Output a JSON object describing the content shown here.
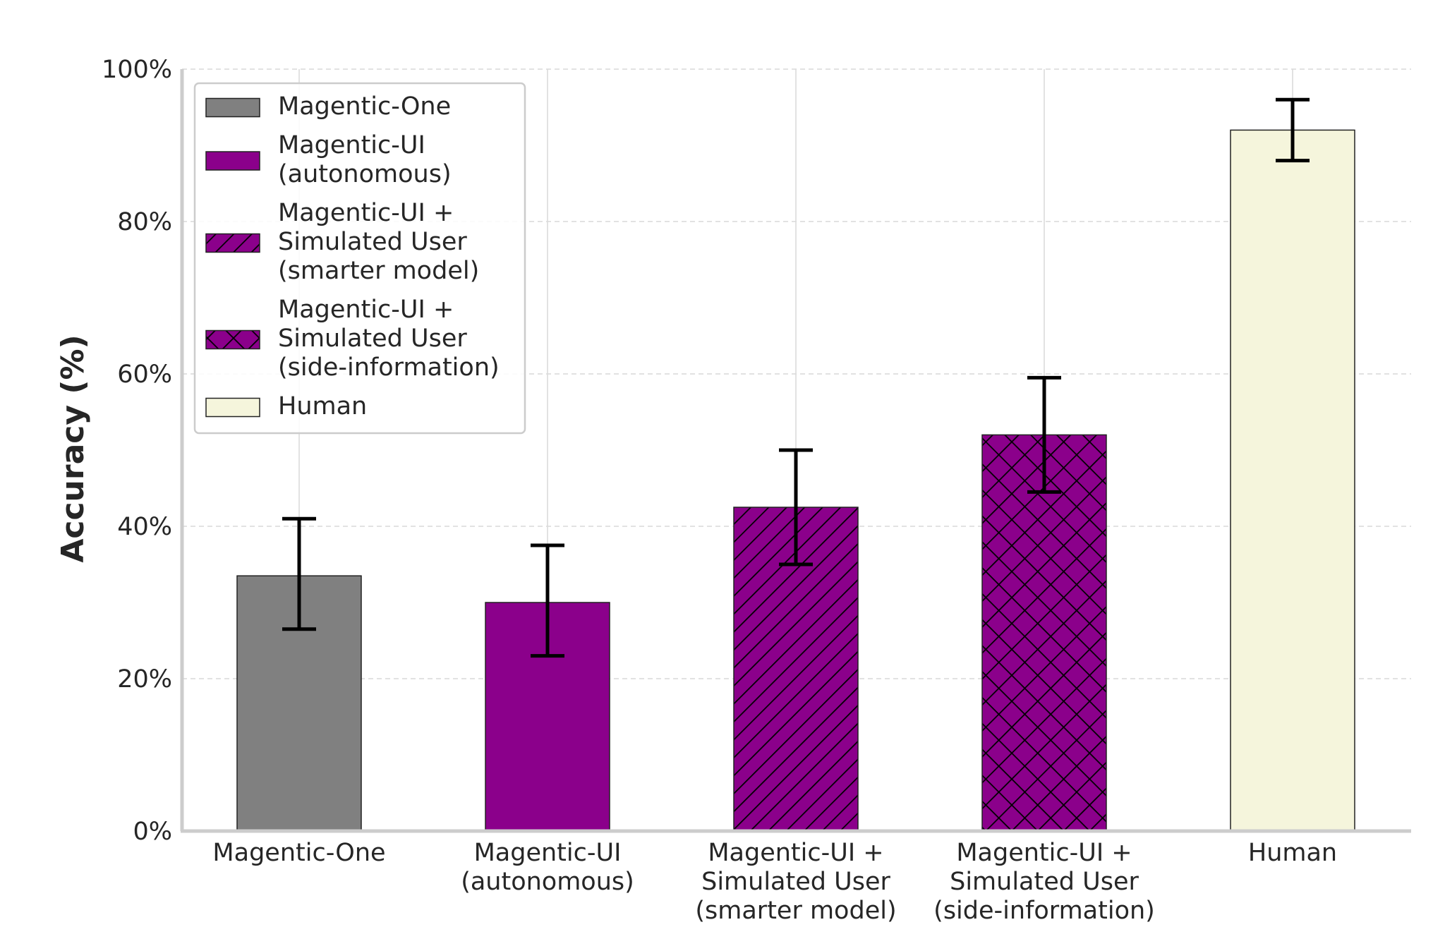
{
  "chart_data": {
    "type": "bar",
    "title": "",
    "xlabel": "",
    "ylabel": "Accuracy (%)",
    "ylim": [
      0,
      100
    ],
    "yticks": [
      "0%",
      "20%",
      "40%",
      "60%",
      "80%",
      "100%"
    ],
    "grid": true,
    "legend_position": "top-left",
    "categories": [
      [
        "Magentic-One"
      ],
      [
        "Magentic-UI",
        "(autonomous)"
      ],
      [
        "Magentic-UI +",
        "Simulated User",
        "(smarter model)"
      ],
      [
        "Magentic-UI +",
        "Simulated User",
        "(side-information)"
      ],
      [
        "Human"
      ]
    ],
    "bars": [
      {
        "value": 33.5,
        "err_low": 26.5,
        "err_high": 41.0,
        "color": "#808080",
        "hatch": "none"
      },
      {
        "value": 30.0,
        "err_low": 23.0,
        "err_high": 37.5,
        "color": "#8b008b",
        "hatch": "none"
      },
      {
        "value": 42.5,
        "err_low": 35.0,
        "err_high": 50.0,
        "color": "#8b008b",
        "hatch": "diagonal"
      },
      {
        "value": 52.0,
        "err_low": 44.5,
        "err_high": 59.5,
        "color": "#8b008b",
        "hatch": "cross"
      },
      {
        "value": 92.0,
        "err_low": 88.0,
        "err_high": 96.0,
        "color": "#f5f5dc",
        "hatch": "none"
      }
    ],
    "legend": [
      {
        "lines": [
          "Magentic-One"
        ],
        "color": "#808080",
        "hatch": "none"
      },
      {
        "lines": [
          "Magentic-UI",
          "(autonomous)"
        ],
        "color": "#8b008b",
        "hatch": "none"
      },
      {
        "lines": [
          "Magentic-UI +",
          "Simulated User",
          "(smarter model)"
        ],
        "color": "#8b008b",
        "hatch": "diagonal"
      },
      {
        "lines": [
          "Magentic-UI +",
          "Simulated User",
          "(side-information)"
        ],
        "color": "#8b008b",
        "hatch": "cross"
      },
      {
        "lines": [
          "Human"
        ],
        "color": "#f5f5dc",
        "hatch": "none"
      }
    ]
  }
}
